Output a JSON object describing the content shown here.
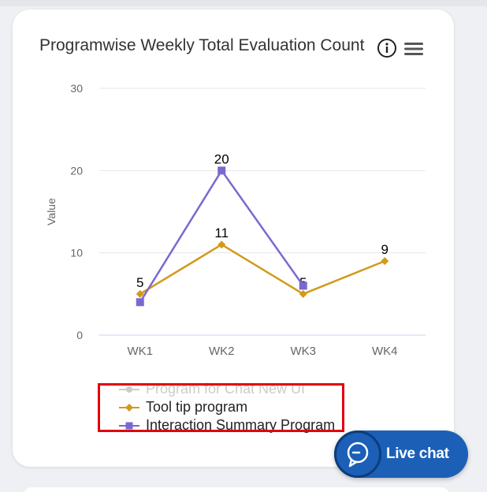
{
  "card": {
    "title": "Programwise Weekly Total Evaluation Count",
    "info_icon": "info-circle-icon",
    "menu_icon": "hamburger-menu-icon"
  },
  "chart_data": {
    "type": "line",
    "categories": [
      "WK1",
      "WK2",
      "WK3",
      "WK4"
    ],
    "ylabel": "Value",
    "ylim": [
      0,
      30
    ],
    "yticks": [
      0,
      10,
      20,
      30
    ],
    "grid": true,
    "legend_position": "bottom",
    "series": [
      {
        "name": "Program for Chat New UI",
        "values": [
          null,
          null,
          null,
          null
        ],
        "color": "#cccccc",
        "marker": "circle",
        "visible": false
      },
      {
        "name": "Tool tip program",
        "values": [
          5,
          11,
          5,
          9
        ],
        "color": "#d19a1a",
        "marker": "diamond",
        "visible": true,
        "labels": [
          "5",
          "11",
          "5",
          "9"
        ]
      },
      {
        "name": "Interaction Summary Program",
        "values": [
          4,
          20,
          6,
          null
        ],
        "color": "#7b68cf",
        "marker": "square",
        "visible": true,
        "labels": [
          null,
          "20",
          null,
          null
        ]
      }
    ]
  },
  "live_chat": {
    "label": "Live chat",
    "icon": "chat-bubble-icon"
  }
}
